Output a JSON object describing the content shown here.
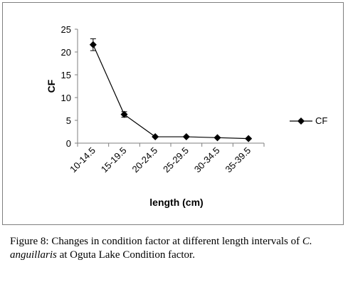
{
  "chart_data": {
    "type": "line",
    "categories": [
      "10-14.5",
      "15-19.5",
      "20-24.5",
      "25-29.5",
      "30-34.5",
      "35-39.5"
    ],
    "series": [
      {
        "name": "CF",
        "values": [
          21.6,
          6.3,
          1.4,
          1.4,
          1.2,
          1.0
        ],
        "error": [
          1.3,
          0.6,
          0.1,
          0.1,
          0.1,
          0.1
        ]
      }
    ],
    "xlabel": "length (cm)",
    "ylabel": "CF",
    "ylim": [
      0,
      25
    ],
    "yticks": [
      0,
      5,
      10,
      15,
      20,
      25
    ],
    "grid": false,
    "legend_position": "right",
    "colors": {
      "line": "#000000",
      "frame": "#7f7f7f",
      "axis": "#7f7f7f"
    }
  },
  "caption": {
    "label": "Figure 8:",
    "text_before_species": "Changes in condition factor at different length intervals of",
    "species": "C. anguillaris",
    "text_after_species": "at Oguta Lake Condition factor."
  }
}
